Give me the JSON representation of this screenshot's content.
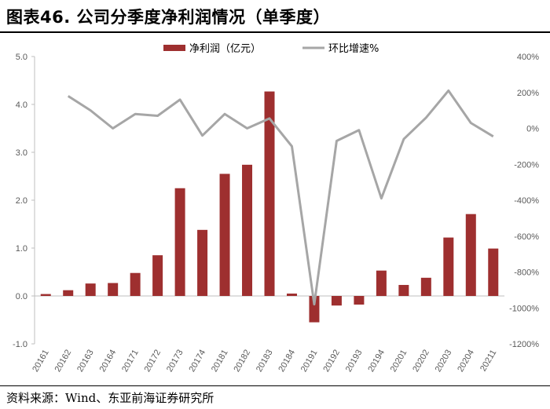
{
  "figure": {
    "title": "图表46. 公司分季度净利润情况（单季度）",
    "source": "资料来源：Wind、东亚前海证券研究所"
  },
  "colors": {
    "bar": "#9E2F2F",
    "line": "#A6A6A6",
    "axis": "#BFBFBF",
    "tick_text": "#595959"
  },
  "chart_data": {
    "type": "bar+line",
    "title": "",
    "categories": [
      "2016Q1",
      "2016Q2",
      "2016Q3",
      "2016Q4",
      "2017Q1",
      "2017Q2",
      "2017Q3",
      "2017Q4",
      "2018Q1",
      "2018Q2",
      "2018Q3",
      "2018Q4",
      "2019Q1",
      "2019Q2",
      "2019Q3",
      "2019Q4",
      "2020Q1",
      "2020Q2",
      "2020Q3",
      "2020Q4",
      "2021Q1"
    ],
    "series": [
      {
        "name": "净利润（亿元）",
        "type": "bar",
        "axis": "left",
        "values": [
          0.04,
          0.12,
          0.26,
          0.27,
          0.48,
          0.85,
          2.25,
          1.38,
          2.55,
          2.74,
          4.27,
          0.05,
          -0.55,
          -0.2,
          -0.18,
          0.53,
          0.23,
          0.38,
          1.22,
          1.71,
          0.99
        ]
      },
      {
        "name": "环比增速%",
        "type": "line",
        "axis": "right",
        "values": [
          null,
          180,
          100,
          0,
          80,
          70,
          160,
          -40,
          80,
          0,
          55,
          -100,
          -980,
          -70,
          -10,
          -390,
          -60,
          60,
          210,
          30,
          -45
        ]
      }
    ],
    "y_left": {
      "ylim": [
        -1.0,
        5.0
      ],
      "ticks": [
        "-1.0",
        "0.0",
        "1.0",
        "2.0",
        "3.0",
        "4.0",
        "5.0"
      ],
      "tick_values": [
        -1,
        0,
        1,
        2,
        3,
        4,
        5
      ]
    },
    "y_right": {
      "ylim": [
        -1200,
        400
      ],
      "ticks": [
        "-1200%",
        "-1000%",
        "-800%",
        "-600%",
        "-400%",
        "-200%",
        "0%",
        "200%",
        "400%"
      ],
      "tick_values": [
        -1200,
        -1000,
        -800,
        -600,
        -400,
        -200,
        0,
        200,
        400
      ]
    },
    "xlabel": "",
    "ylabel": "",
    "grid": false,
    "legend": "top-center"
  }
}
